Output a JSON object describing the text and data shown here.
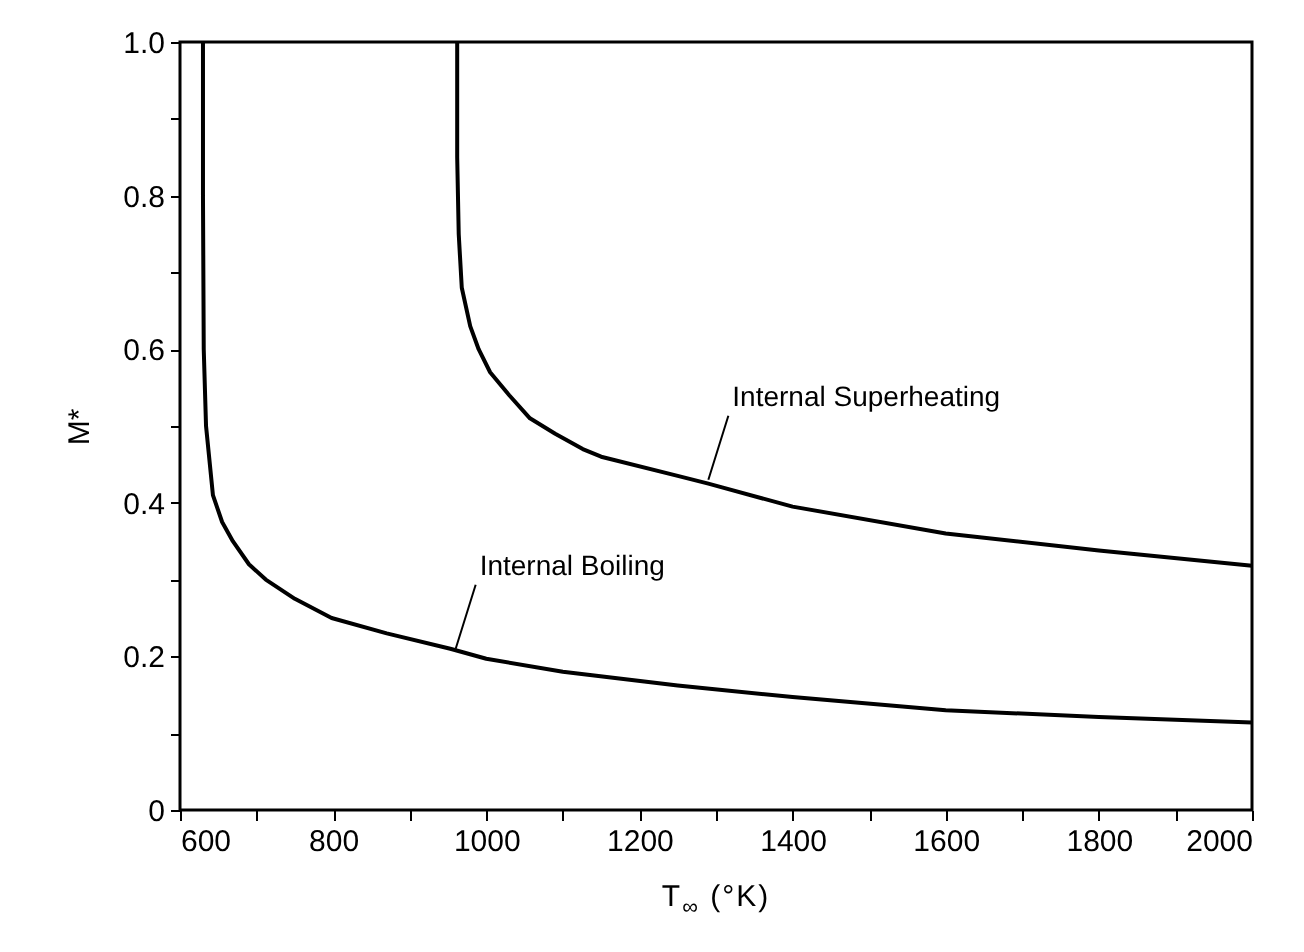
{
  "chart_data": {
    "type": "line",
    "xlabel": "T$_{∞}$ (°K)",
    "ylabel": "M*",
    "xlim": [
      600,
      2000
    ],
    "ylim": [
      0,
      1
    ],
    "xticks": [
      600,
      {
        "value": 700,
        "label": null
      },
      800,
      {
        "value": 900,
        "label": null
      },
      1000,
      {
        "value": 1100,
        "label": null
      },
      1200,
      {
        "value": 1300,
        "label": null
      },
      1400,
      {
        "value": 1500,
        "label": null
      },
      1600,
      {
        "value": 1700,
        "label": null
      },
      1800,
      {
        "value": 1900,
        "label": null
      },
      2000
    ],
    "yticks": [
      0,
      {
        "value": 0.1,
        "label": null
      },
      0.2,
      {
        "value": 0.3,
        "label": null
      },
      0.4,
      {
        "value": 0.5,
        "label": null
      },
      0.6,
      {
        "value": 0.7,
        "label": null
      },
      0.8,
      {
        "value": 0.9,
        "label": null
      },
      {
        "value": 1,
        "label": "1.0"
      }
    ],
    "grid": false,
    "legend": false,
    "marker": "none",
    "line_style": "solid",
    "series": [
      {
        "color": "#000000",
        "x": [
          630,
          630,
          631,
          634,
          643,
          655,
          669,
          690,
          712,
          750,
          798,
          870,
          953,
          1000,
          1100,
          1250,
          1400,
          1600,
          1800,
          2000
        ],
        "values": [
          1.0,
          0.8,
          0.6,
          0.5,
          0.41,
          0.375,
          0.35,
          0.32,
          0.3,
          0.275,
          0.25,
          0.23,
          0.21,
          0.197,
          0.18,
          0.162,
          0.147,
          0.13,
          0.121,
          0.114
        ]
      },
      {
        "color": "#000000",
        "x": [
          962,
          962,
          964,
          968,
          979,
          990,
          1005,
          1030,
          1057,
          1090,
          1126,
          1150,
          1250,
          1290,
          1400,
          1600,
          1800,
          2000
        ],
        "values": [
          1.0,
          0.85,
          0.75,
          0.68,
          0.63,
          0.6,
          0.57,
          0.54,
          0.51,
          0.49,
          0.47,
          0.46,
          0.435,
          0.425,
          0.395,
          0.36,
          0.338,
          0.318
        ]
      }
    ],
    "annotations": [
      {
        "text": "Internal Boiling",
        "x": 960,
        "y": 0.21
      },
      {
        "text": "Internal Superheating",
        "x": 1290,
        "y": 0.43
      }
    ]
  }
}
